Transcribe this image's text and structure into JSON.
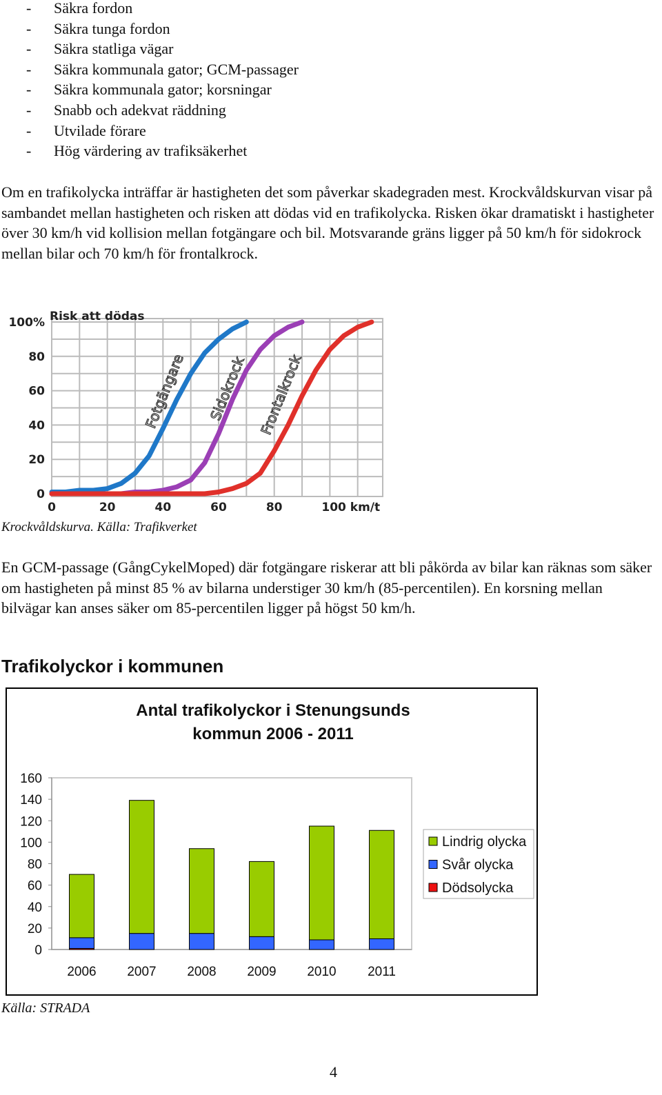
{
  "bullets": [
    "Säkra fordon",
    "Säkra tunga fordon",
    "Säkra statliga vägar",
    "Säkra kommunala gator; GCM-passager",
    "Säkra kommunala gator; korsningar",
    "Snabb och adekvat räddning",
    "Utvilade förare",
    "Hög värdering av trafiksäkerhet"
  ],
  "paragraphs": [
    "Om en trafikolycka inträffar är hastigheten det som påverkar skadegraden mest. Krockvåldskurvan visar på sambandet mellan hastigheten och risken att dödas vid en trafikolycka. Risken ökar dramatiskt i hastigheter över 30 km/h vid kollision mellan fotgängare och bil. Motsvarande gräns ligger på 50 km/h för sidokrock mellan bilar och 70 km/h för frontalkrock.",
    "En GCM-passage (GångCykelMoped) där fotgängare riskerar att bli påkörda av bilar kan räknas som säker om hastigheten på minst 85 % av bilarna understiger 30 km/h (85-percentilen). En korsning mellan bilvägar kan anses säker om 85-percentilen ligger på högst 50 km/h."
  ],
  "figure_caption": "Krockvåldskurva. Källa: Trafikverket",
  "heading": "Trafikolyckor i kommunen",
  "source": "Källa: STRADA",
  "page_number": 4,
  "chart_data": [
    {
      "type": "line",
      "y_label": "Risk att dödas",
      "x": [
        0,
        5,
        10,
        15,
        20,
        25,
        30,
        35,
        40,
        45,
        50,
        55,
        60,
        65,
        70,
        75,
        80,
        85,
        90,
        95,
        100,
        105,
        110,
        115
      ],
      "series": [
        {
          "name": "Fotgängare",
          "color": "#1f78c8",
          "values": [
            1,
            1,
            2,
            2,
            3,
            6,
            12,
            22,
            38,
            55,
            70,
            82,
            90,
            96,
            100,
            null,
            null,
            null,
            null,
            null,
            null,
            null,
            null,
            null
          ]
        },
        {
          "name": "Sidokrock",
          "color": "#9b3fb5",
          "values": [
            0,
            0,
            0,
            0,
            0,
            0,
            1,
            1,
            2,
            4,
            8,
            18,
            35,
            55,
            72,
            84,
            92,
            97,
            100,
            null,
            null,
            null,
            null,
            null
          ]
        },
        {
          "name": "Frontalkrock",
          "color": "#e0302a",
          "values": [
            0,
            0,
            0,
            0,
            0,
            0,
            0,
            0,
            0,
            0,
            0,
            0,
            1,
            3,
            6,
            12,
            25,
            40,
            57,
            72,
            84,
            92,
            97,
            100
          ]
        }
      ],
      "xlim": [
        0,
        119
      ],
      "ylim": [
        -1.6,
        102
      ],
      "xticks": [
        0,
        20,
        40,
        60,
        80,
        {
          "value": 100,
          "label": "100 km/t"
        }
      ],
      "yticks": [
        0,
        20,
        40,
        60,
        80,
        {
          "value": 100,
          "label": "100%"
        }
      ],
      "xgrid": [
        10,
        20,
        30,
        40,
        50,
        60,
        70,
        80,
        90,
        100,
        110
      ],
      "ygrid": [
        10,
        20,
        30,
        40,
        50,
        60,
        70,
        80,
        90,
        100
      ],
      "grid": true
    },
    {
      "type": "bar",
      "stacked": true,
      "title": "Antal trafikolyckor i Stenungsunds kommun 2006 - 2011",
      "categories": [
        "2006",
        "2007",
        "2008",
        "2009",
        "2010",
        "2011"
      ],
      "series": [
        {
          "name": "Lindrig olycka",
          "color": "#99cc00",
          "values": [
            59,
            124,
            79,
            70,
            106,
            101
          ]
        },
        {
          "name": "Svår olycka",
          "color": "#3366ff",
          "values": [
            10,
            15,
            15,
            12,
            9,
            10
          ]
        },
        {
          "name": "Dödsolycka",
          "color": "#ee1111",
          "values": [
            1,
            0,
            0,
            0,
            0,
            0
          ]
        }
      ],
      "ylim": [
        0,
        160
      ],
      "yticks": [
        0,
        20,
        40,
        60,
        80,
        100,
        120,
        140,
        160
      ],
      "legend": "right"
    }
  ]
}
